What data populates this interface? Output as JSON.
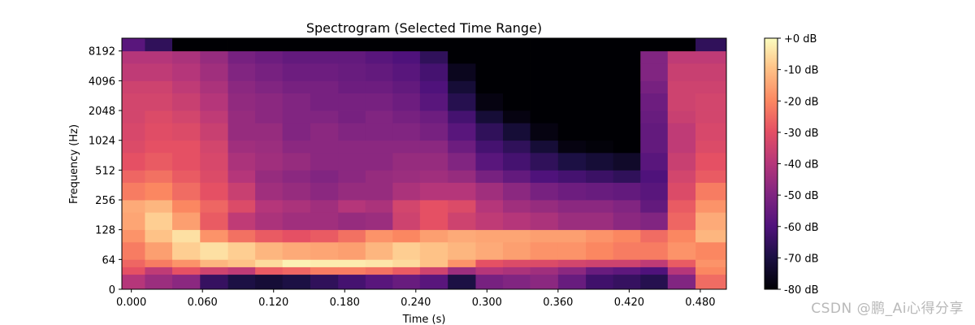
{
  "chart_data": {
    "type": "heatmap",
    "title": "Spectrogram (Selected Time Range)",
    "xlabel": "Time (s)",
    "ylabel": "Frequency (Hz)",
    "xlim": [
      -0.008,
      0.502
    ],
    "x_ticks": [
      0.0,
      0.06,
      0.12,
      0.18,
      0.24,
      0.3,
      0.36,
      0.42,
      0.48
    ],
    "x_tick_labels": [
      "0.000",
      "0.060",
      "0.120",
      "0.180",
      "0.240",
      "0.300",
      "0.360",
      "0.420",
      "0.480"
    ],
    "y_scale": "symlog",
    "y_ticks": [
      0,
      64,
      128,
      256,
      512,
      1024,
      2048,
      4096,
      8192
    ],
    "y_tick_labels": [
      "0",
      "64",
      "128",
      "256",
      "512",
      "1024",
      "2048",
      "4096",
      "8192"
    ],
    "colormap": "magma",
    "colorbar": {
      "range": [
        -80,
        0
      ],
      "ticks": [
        0,
        -10,
        -20,
        -30,
        -40,
        -50,
        -60,
        -70,
        -80
      ],
      "tick_labels": [
        "+0 dB",
        "-10 dB",
        "-20 dB",
        "-30 dB",
        "-40 dB",
        "-50 dB",
        "-60 dB",
        "-70 dB",
        "-80 dB"
      ]
    },
    "frame_times": [
      0.0,
      0.023,
      0.046,
      0.07,
      0.093,
      0.116,
      0.139,
      0.163,
      0.186,
      0.209,
      0.232,
      0.255,
      0.279,
      0.302,
      0.325,
      0.348,
      0.372,
      0.395,
      0.418,
      0.441,
      0.464,
      0.488
    ],
    "freq_bands_hz": [
      0,
      32,
      48,
      64,
      96,
      128,
      192,
      256,
      384,
      512,
      768,
      1024,
      1536,
      2048,
      3072,
      4096,
      6144,
      8192,
      11025
    ],
    "db_matrix_rows_bands_low_to_high": [
      [
        -40,
        -45,
        -48,
        -65,
        -70,
        -72,
        -70,
        -66,
        -62,
        -58,
        -55,
        -58,
        -70,
        -52,
        -50,
        -48,
        -55,
        -63,
        -65,
        -68,
        -50,
        -25
      ],
      [
        -30,
        -38,
        -30,
        -35,
        -38,
        -28,
        -26,
        -22,
        -22,
        -24,
        -28,
        -35,
        -45,
        -40,
        -42,
        -44,
        -48,
        -55,
        -57,
        -60,
        -40,
        -20
      ],
      [
        -26,
        -22,
        -18,
        -12,
        -10,
        -6,
        -2,
        -3,
        -3,
        -4,
        -6,
        -10,
        -18,
        -30,
        -32,
        -32,
        -34,
        -35,
        -35,
        -38,
        -28,
        -18
      ],
      [
        -22,
        -16,
        -8,
        -5,
        -8,
        -12,
        -14,
        -15,
        -16,
        -12,
        -8,
        -10,
        -12,
        -14,
        -16,
        -18,
        -18,
        -20,
        -22,
        -22,
        -18,
        -20
      ],
      [
        -18,
        -10,
        -5,
        -18,
        -24,
        -28,
        -30,
        -28,
        -24,
        -18,
        -20,
        -16,
        -14,
        -15,
        -15,
        -16,
        -16,
        -18,
        -20,
        -25,
        -20,
        -12
      ],
      [
        -15,
        -8,
        -16,
        -28,
        -38,
        -42,
        -44,
        -44,
        -46,
        -45,
        -35,
        -30,
        -35,
        -38,
        -40,
        -42,
        -45,
        -45,
        -48,
        -50,
        -26,
        -14
      ],
      [
        -14,
        -12,
        -20,
        -26,
        -32,
        -40,
        -42,
        -44,
        -40,
        -42,
        -34,
        -30,
        -32,
        -40,
        -44,
        -46,
        -48,
        -48,
        -50,
        -56,
        -28,
        -18
      ],
      [
        -22,
        -20,
        -25,
        -30,
        -36,
        -44,
        -46,
        -48,
        -46,
        -46,
        -42,
        -40,
        -40,
        -44,
        -48,
        -52,
        -54,
        -55,
        -56,
        -58,
        -32,
        -22
      ],
      [
        -26,
        -24,
        -28,
        -32,
        -40,
        -46,
        -48,
        -50,
        -48,
        -46,
        -45,
        -44,
        -46,
        -52,
        -56,
        -60,
        -62,
        -64,
        -66,
        -60,
        -34,
        -28
      ],
      [
        -30,
        -28,
        -30,
        -33,
        -42,
        -44,
        -46,
        -48,
        -48,
        -48,
        -46,
        -46,
        -50,
        -58,
        -62,
        -66,
        -70,
        -72,
        -74,
        -58,
        -36,
        -30
      ],
      [
        -32,
        -30,
        -30,
        -34,
        -44,
        -45,
        -48,
        -48,
        -48,
        -48,
        -48,
        -48,
        -54,
        -62,
        -66,
        -72,
        -78,
        -79,
        -80,
        -56,
        -38,
        -32
      ],
      [
        -33,
        -31,
        -32,
        -36,
        -46,
        -46,
        -50,
        -48,
        -50,
        -50,
        -50,
        -52,
        -58,
        -66,
        -72,
        -78,
        -80,
        -80,
        -80,
        -56,
        -38,
        -33
      ],
      [
        -34,
        -32,
        -34,
        -38,
        -46,
        -48,
        -50,
        -50,
        -52,
        -50,
        -52,
        -54,
        -62,
        -72,
        -78,
        -80,
        -80,
        -80,
        -80,
        -55,
        -36,
        -34
      ],
      [
        -34,
        -34,
        -36,
        -40,
        -47,
        -48,
        -50,
        -52,
        -52,
        -52,
        -54,
        -58,
        -68,
        -78,
        -80,
        -80,
        -80,
        -80,
        -80,
        -54,
        -35,
        -34
      ],
      [
        -35,
        -35,
        -38,
        -42,
        -48,
        -50,
        -52,
        -52,
        -54,
        -54,
        -56,
        -60,
        -72,
        -80,
        -80,
        -80,
        -80,
        -80,
        -80,
        -52,
        -35,
        -35
      ],
      [
        -38,
        -38,
        -40,
        -44,
        -50,
        -52,
        -54,
        -54,
        -55,
        -56,
        -58,
        -62,
        -76,
        -80,
        -80,
        -80,
        -80,
        -80,
        -80,
        -50,
        -36,
        -36
      ],
      [
        -40,
        -40,
        -42,
        -46,
        -52,
        -54,
        -56,
        -56,
        -56,
        -58,
        -60,
        -66,
        -80,
        -80,
        -80,
        -80,
        -80,
        -80,
        -80,
        -50,
        -38,
        -38
      ],
      [
        -58,
        -66,
        -80,
        -80,
        -80,
        -80,
        -80,
        -80,
        -80,
        -80,
        -80,
        -80,
        -80,
        -80,
        -80,
        -80,
        -80,
        -80,
        -80,
        -80,
        -80,
        -66
      ]
    ]
  },
  "watermark": "CSDN @鹏_Ai心得分享"
}
